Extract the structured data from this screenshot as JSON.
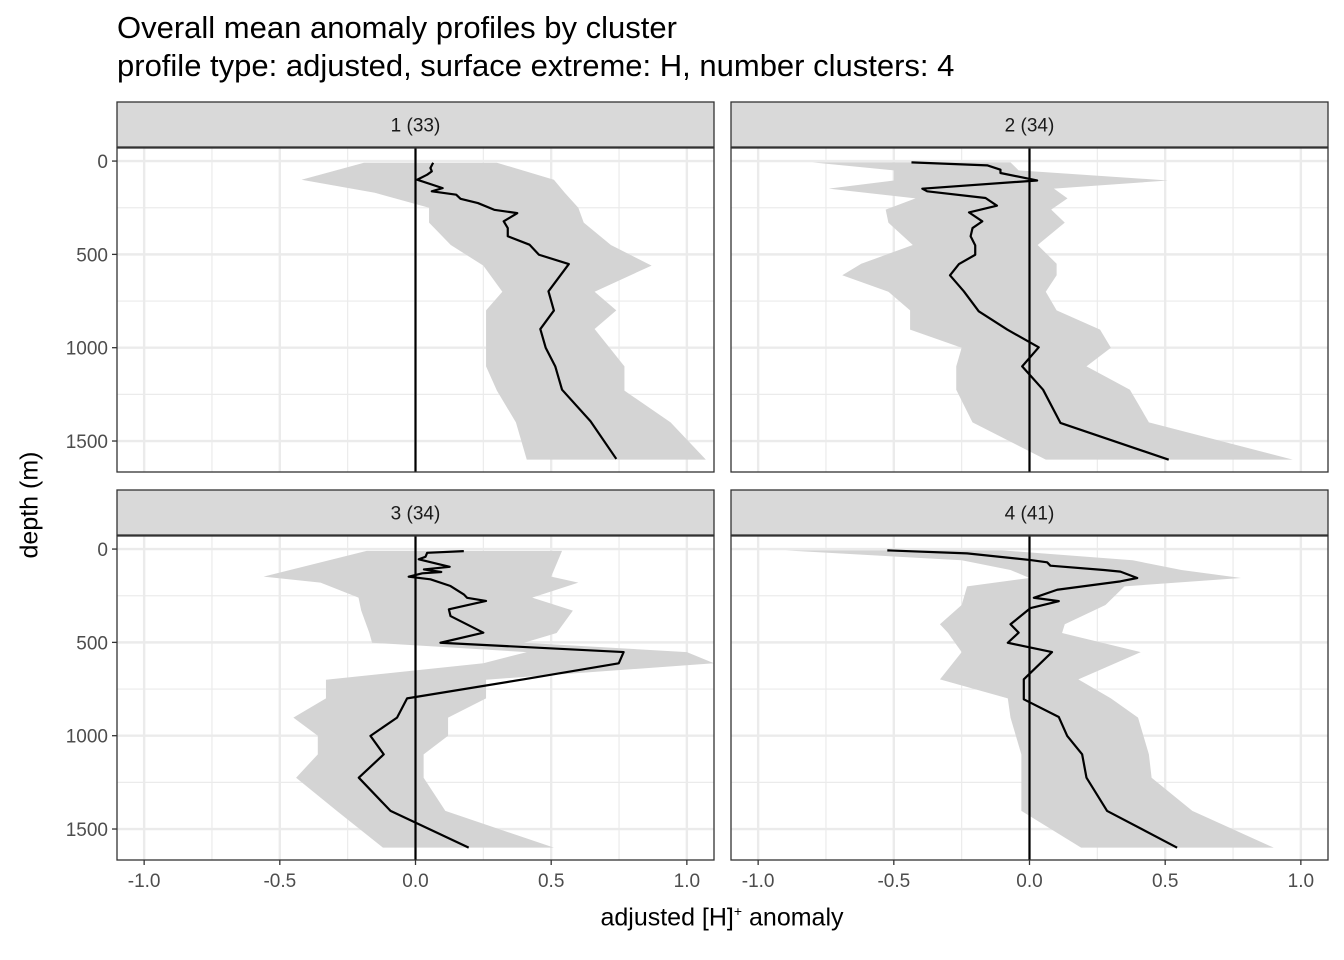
{
  "chart_data": {
    "type": "line",
    "title": "Overall mean anomaly profiles by cluster",
    "subtitle": "profile type: adjusted, surface extreme: H, number clusters: 4",
    "xlabel_main": "adjusted [H]",
    "xlabel_sup": "+",
    "xlabel_tail": " anomaly",
    "ylabel": "depth (m)",
    "xlim": [
      -1.1,
      1.1
    ],
    "ylim": [
      1666,
      -70
    ],
    "x_ticks": [
      -1.0,
      -0.5,
      0.0,
      0.5,
      1.0
    ],
    "x_tick_labels": [
      "-1.0",
      "-0.5",
      "0.0",
      "0.5",
      "1.0"
    ],
    "y_ticks": [
      0,
      500,
      1000,
      1500
    ],
    "y_tick_labels": [
      "0",
      "500",
      "1000",
      "1500"
    ],
    "grid": true,
    "colors": {
      "line": "#000000",
      "band": "#d4d4d4",
      "strip": "#d9d9d9",
      "grid": "#ebebeb"
    },
    "panels": [
      {
        "strip": "1 (33)",
        "line": {
          "depth": [
            9,
            37,
            55,
            73,
            100,
            145,
            162,
            180,
            202,
            225,
            261,
            279,
            323,
            359,
            403,
            448,
            502,
            552,
            698,
            801,
            900,
            1001,
            1100,
            1225,
            1394,
            1596
          ],
          "value": [
            0.065,
            0.055,
            0.06,
            0.043,
            0.006,
            0.1,
            0.06,
            0.15,
            0.166,
            0.23,
            0.29,
            0.375,
            0.325,
            0.34,
            0.34,
            0.42,
            0.455,
            0.565,
            0.49,
            0.51,
            0.46,
            0.48,
            0.515,
            0.54,
            0.645,
            0.74
          ]
        },
        "band": {
          "depth": [
            9,
            100,
            170,
            250,
            330,
            450,
            560,
            700,
            800,
            900,
            1100,
            1230,
            1400,
            1600
          ],
          "lower": [
            -0.19,
            -0.42,
            -0.15,
            0.05,
            0.05,
            0.13,
            0.25,
            0.32,
            0.26,
            0.26,
            0.26,
            0.3,
            0.37,
            0.41
          ],
          "upper": [
            0.3,
            0.51,
            0.55,
            0.6,
            0.62,
            0.72,
            0.87,
            0.66,
            0.74,
            0.66,
            0.77,
            0.77,
            0.94,
            1.07
          ]
        }
      },
      {
        "strip": "2 (34)",
        "line": {
          "depth": [
            7,
            23,
            46,
            64,
            104,
            148,
            162,
            198,
            239,
            275,
            323,
            359,
            403,
            452,
            502,
            552,
            612,
            698,
            805,
            903,
            998,
            1100,
            1225,
            1403,
            1600
          ],
          "value": [
            -0.435,
            -0.156,
            -0.107,
            -0.107,
            0.028,
            -0.395,
            -0.377,
            -0.162,
            -0.12,
            -0.223,
            -0.174,
            -0.21,
            -0.217,
            -0.2,
            -0.2,
            -0.26,
            -0.293,
            -0.242,
            -0.187,
            -0.082,
            0.034,
            -0.027,
            0.05,
            0.114,
            0.513
          ]
        },
        "band": {
          "depth": [
            7,
            50,
            104,
            148,
            200,
            260,
            330,
            450,
            550,
            612,
            700,
            800,
            903,
            1000,
            1100,
            1225,
            1400,
            1600
          ],
          "lower": [
            -0.8,
            -0.5,
            -0.5,
            -0.74,
            -0.42,
            -0.53,
            -0.52,
            -0.43,
            -0.62,
            -0.69,
            -0.52,
            -0.44,
            -0.44,
            -0.25,
            -0.27,
            -0.27,
            -0.21,
            0.06
          ],
          "upper": [
            -0.07,
            -0.04,
            0.51,
            0.09,
            0.14,
            0.08,
            0.13,
            0.03,
            0.1,
            0.1,
            0.06,
            0.1,
            0.26,
            0.3,
            0.21,
            0.37,
            0.44,
            0.97
          ]
        }
      },
      {
        "strip": "3 (34)",
        "line": {
          "depth": [
            11,
            20,
            41,
            55,
            95,
            109,
            123,
            130,
            148,
            162,
            198,
            243,
            261,
            278,
            323,
            359,
            448,
            502,
            552,
            612,
            698,
            800,
            903,
            1001,
            1100,
            1225,
            1403,
            1600
          ],
          "value": [
            0.178,
            0.043,
            0.037,
            0.012,
            0.126,
            0.031,
            0.095,
            0.025,
            -0.025,
            0.055,
            0.129,
            0.178,
            0.19,
            0.26,
            0.123,
            0.129,
            0.25,
            0.092,
            0.767,
            0.749,
            0.399,
            -0.031,
            -0.068,
            -0.166,
            -0.117,
            -0.209,
            -0.092,
            0.196
          ]
        },
        "band": {
          "depth": [
            10,
            148,
            180,
            260,
            330,
            450,
            502,
            552,
            612,
            700,
            800,
            903,
            1000,
            1100,
            1225,
            1403,
            1600
          ],
          "lower": [
            -0.18,
            -0.56,
            -0.35,
            -0.21,
            -0.2,
            -0.17,
            -0.16,
            0.41,
            0.25,
            -0.33,
            -0.33,
            -0.45,
            -0.36,
            -0.36,
            -0.44,
            -0.29,
            -0.12
          ],
          "upper": [
            0.54,
            0.5,
            0.6,
            0.43,
            0.58,
            0.52,
            0.4,
            1.0,
            1.1,
            0.26,
            0.26,
            0.12,
            0.12,
            0.03,
            0.03,
            0.11,
            0.51
          ]
        }
      },
      {
        "strip": "4 (41)",
        "line": {
          "depth": [
            7,
            23,
            59,
            71,
            89,
            112,
            121,
            155,
            173,
            218,
            261,
            279,
            316,
            403,
            448,
            502,
            552,
            698,
            805,
            900,
            1001,
            1100,
            1225,
            1403,
            1600
          ],
          "value": [
            -0.524,
            -0.23,
            0.004,
            0.065,
            0.077,
            0.274,
            0.335,
            0.397,
            0.335,
            0.102,
            0.016,
            0.108,
            0.004,
            -0.07,
            -0.04,
            -0.08,
            0.083,
            -0.021,
            -0.021,
            0.108,
            0.139,
            0.194,
            0.21,
            0.286,
            0.544
          ]
        },
        "band": {
          "depth": [
            7,
            60,
            112,
            155,
            200,
            300,
            403,
            450,
            552,
            698,
            800,
            903,
            1100,
            1225,
            1403,
            1600
          ],
          "lower": [
            -0.9,
            -0.25,
            -0.07,
            0.0,
            -0.23,
            -0.25,
            -0.33,
            -0.3,
            -0.25,
            -0.33,
            -0.08,
            -0.07,
            -0.03,
            -0.03,
            -0.03,
            0.19
          ],
          "upper": [
            -0.1,
            0.38,
            0.56,
            0.78,
            0.35,
            0.28,
            0.13,
            0.12,
            0.41,
            0.18,
            0.3,
            0.4,
            0.44,
            0.45,
            0.6,
            0.9
          ]
        }
      }
    ]
  }
}
